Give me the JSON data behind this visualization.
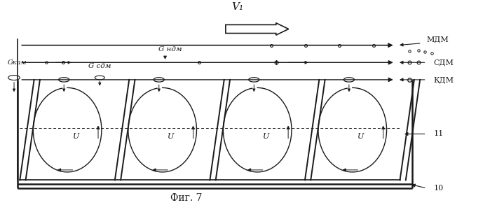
{
  "title": "Фиг. 7",
  "v1_label": "V₁",
  "labels": {
    "MDM": "МДМ",
    "SDM": "СДМ",
    "KDM": "КДМ",
    "G_sdm": "G сдм",
    "G_ndm": "G ндм",
    "G_kdm": "Gкам",
    "U": "U",
    "n11": "11",
    "n10": "10"
  },
  "bg_color": "#ffffff",
  "line_color": "#1a1a1a",
  "num_vortices": 4,
  "fig_width": 6.99,
  "fig_height": 3.03
}
